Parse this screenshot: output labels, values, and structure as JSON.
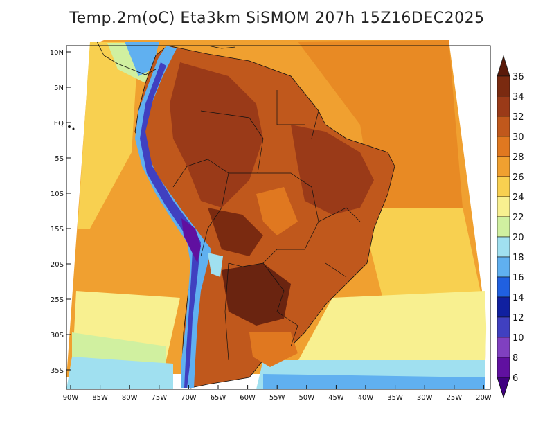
{
  "title": "Temp.2m(oC) Eta3km SiSMOM 207h 15Z16DEC2025",
  "latitude_labels": [
    "10N",
    "5N",
    "EQ",
    "5S",
    "10S",
    "15S",
    "20S",
    "25S",
    "30S",
    "35S"
  ],
  "longitude_labels": [
    "90W",
    "85W",
    "80W",
    "75W",
    "70W",
    "65W",
    "60W",
    "55W",
    "50W",
    "45W",
    "40W",
    "35W",
    "30W",
    "25W",
    "20W"
  ],
  "colorbar": {
    "labels": [
      "36",
      "34",
      "32",
      "30",
      "28",
      "26",
      "24",
      "22",
      "20",
      "18",
      "16",
      "14",
      "12",
      "10",
      "8",
      "6"
    ],
    "colors": [
      "#5a1a0a",
      "#7a2a10",
      "#9a3a18",
      "#c0581c",
      "#e07820",
      "#f0a030",
      "#f8d050",
      "#f8f090",
      "#d0f0a0",
      "#a0e0f0",
      "#60b0f0",
      "#2060e0",
      "#1020a0",
      "#4040c0",
      "#8040c0",
      "#6010a0",
      "#400080"
    ]
  },
  "colors": {
    "ocean_warm": "#f0a030",
    "ocean_mild": "#f8d050",
    "ocean_cool": "#f8f090",
    "ocean_cold": "#d0f0a0",
    "ocean_coldest": "#a0e0f0",
    "land_hot": "#c0581c",
    "land_hotter": "#9a3a18",
    "land_hottest": "#6a2410",
    "andes_cold": "#60b0f0",
    "andes_colder": "#4040c0",
    "andes_coldest": "#6010a0"
  }
}
